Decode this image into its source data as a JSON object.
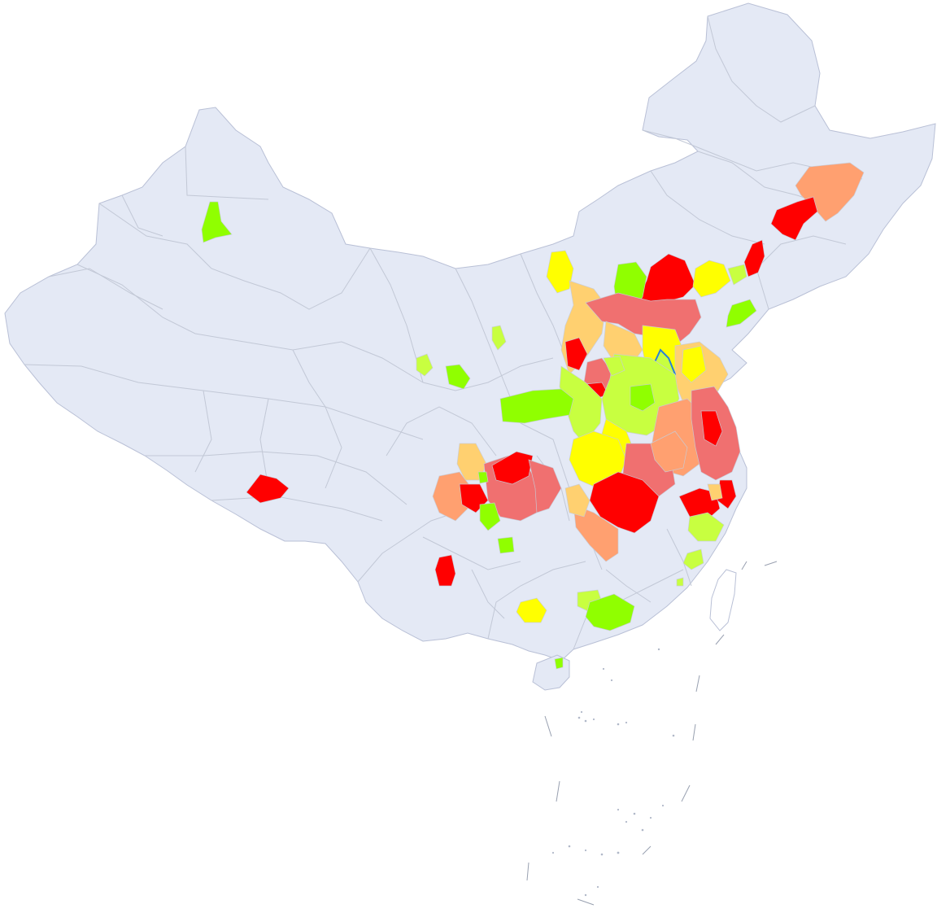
{
  "map": {
    "type": "choropleth",
    "country": "China",
    "base_fill": "#e4e9f5",
    "border_color": "#b9c0d6",
    "sea_fill": "#ffffff",
    "color_scale": [
      "#ff0000",
      "#f07070",
      "#ffa070",
      "#ffd070",
      "#ffff00",
      "#c8ff40",
      "#90ff00"
    ],
    "highlight_outline_color": "#2a7fd8"
  }
}
